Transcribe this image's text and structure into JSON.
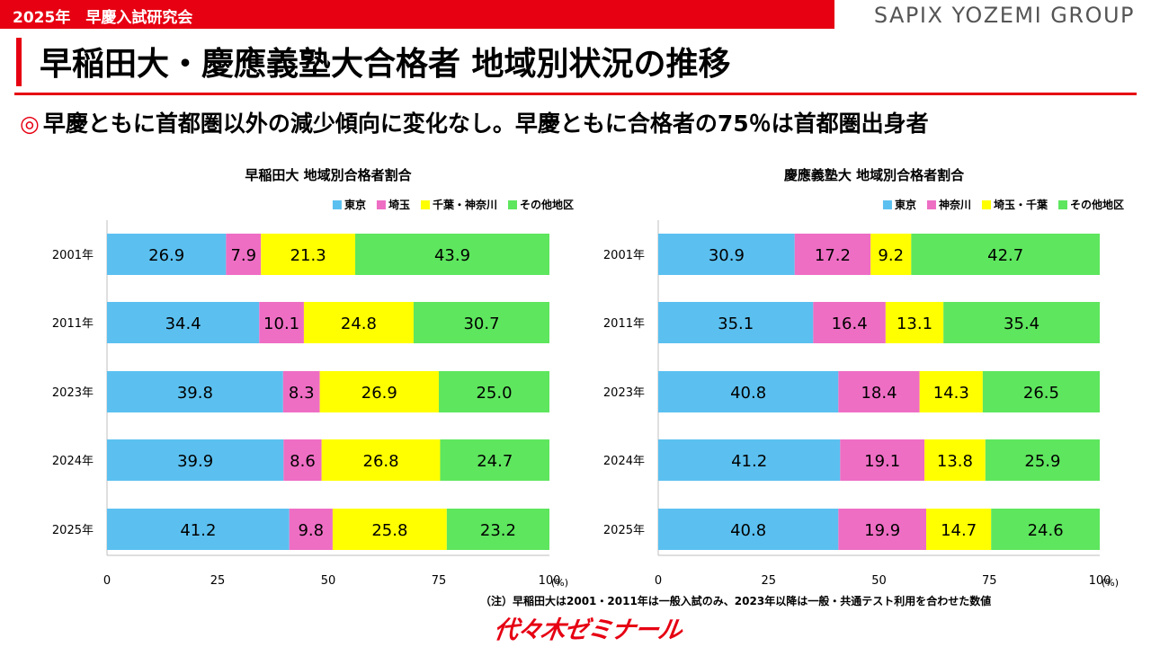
{
  "header": {
    "tag": "2025年　早慶入試研究会",
    "brand": "SAPIX YOZEMI GROUP",
    "title": "早稲田大・慶應義塾大合格者 地域別状況の推移",
    "subtitle_mark": "◎",
    "subtitle": "早慶ともに首都圏以外の減少傾向に変化なし。早慶ともに合格者の75％は首都圏出身者"
  },
  "note": "（注）早稲田大は2001・2011年は一般入試のみ、2023年以降は一般・共通テスト利用を合わせた数値",
  "logo_text": "代々木ゼミナール",
  "colors": {
    "blue": "#5bc0f0",
    "pink": "#ee6ec4",
    "yellow": "#ffff00",
    "green": "#5ee65e"
  },
  "chart_data": [
    {
      "type": "bar",
      "orientation": "horizontal",
      "stacked": true,
      "title": "早稲田大 地域別合格者割合",
      "categories": [
        "2001年",
        "2011年",
        "2023年",
        "2024年",
        "2025年"
      ],
      "series": [
        {
          "name": "東京",
          "color": "blue",
          "values": [
            26.9,
            34.4,
            39.8,
            39.9,
            41.2
          ]
        },
        {
          "name": "埼玉",
          "color": "pink",
          "values": [
            7.9,
            10.1,
            8.3,
            8.6,
            9.8
          ]
        },
        {
          "name": "千葉・神奈川",
          "color": "yellow",
          "values": [
            21.3,
            24.8,
            26.9,
            26.8,
            25.8
          ]
        },
        {
          "name": "その他地区",
          "color": "green",
          "values": [
            43.9,
            30.7,
            25.0,
            24.7,
            23.2
          ]
        }
      ],
      "xlim": [
        0,
        100
      ],
      "xticks": [
        0,
        25,
        50,
        75,
        100
      ],
      "xlabel": "",
      "unit": "(%)",
      "legend": "top-right",
      "grid": false
    },
    {
      "type": "bar",
      "orientation": "horizontal",
      "stacked": true,
      "title": "慶應義塾大 地域別合格者割合",
      "categories": [
        "2001年",
        "2011年",
        "2023年",
        "2024年",
        "2025年"
      ],
      "series": [
        {
          "name": "東京",
          "color": "blue",
          "values": [
            30.9,
            35.1,
            40.8,
            41.2,
            40.8
          ]
        },
        {
          "name": "神奈川",
          "color": "pink",
          "values": [
            17.2,
            16.4,
            18.4,
            19.1,
            19.9
          ]
        },
        {
          "name": "埼玉・千葉",
          "color": "yellow",
          "values": [
            9.2,
            13.1,
            14.3,
            13.8,
            14.7
          ]
        },
        {
          "name": "その他地区",
          "color": "green",
          "values": [
            42.7,
            35.4,
            26.5,
            25.9,
            24.6
          ]
        }
      ],
      "xlim": [
        0,
        100
      ],
      "xticks": [
        0,
        25,
        50,
        75,
        100
      ],
      "xlabel": "",
      "unit": "(%)",
      "legend": "top-right",
      "grid": false
    }
  ]
}
